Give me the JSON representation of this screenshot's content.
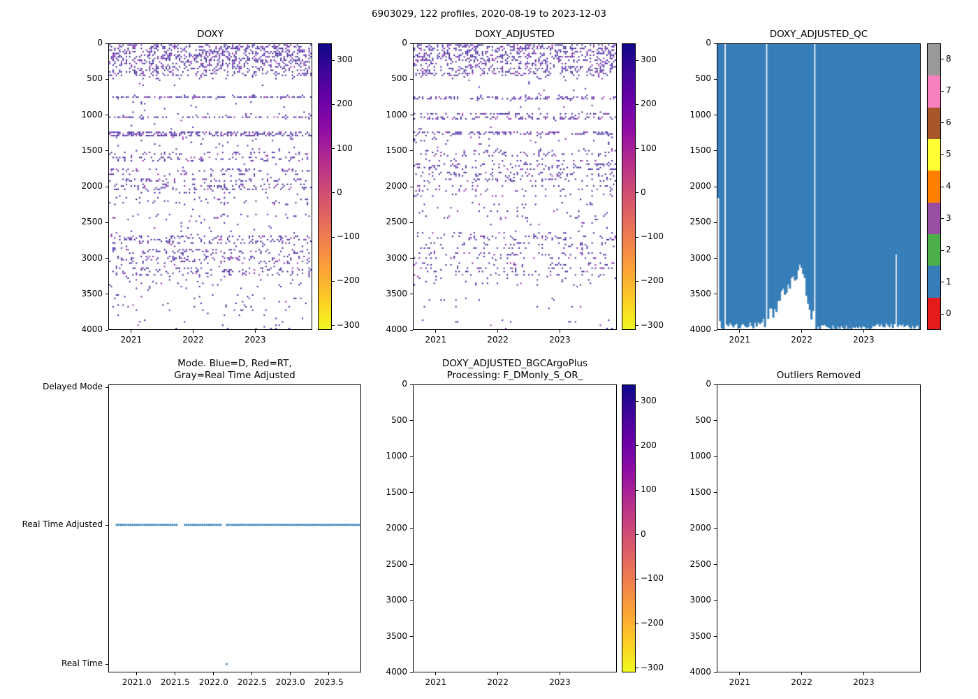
{
  "figure": {
    "title": "6903029, 122 profiles, 2020-08-19 to 2023-12-03"
  },
  "chart_data": [
    {
      "id": "doxy",
      "type": "scatter",
      "title": "DOXY",
      "x_range": [
        2020.63,
        2023.92
      ],
      "y_range": [
        0,
        4000
      ],
      "y_inverted": true,
      "n_profiles": 122,
      "seed": 7,
      "xticks": {
        "values": [
          2021,
          2022,
          2023
        ],
        "labels": [
          "2021",
          "2022",
          "2023"
        ]
      },
      "yticks": {
        "values": [
          0,
          500,
          1000,
          1500,
          2000,
          2500,
          3000,
          3500,
          4000
        ],
        "labels": [
          "0",
          "500",
          "1000",
          "1500",
          "2000",
          "2500",
          "3000",
          "3500",
          "4000"
        ]
      },
      "point_colors": [
        "#2c0894",
        "#1b048b",
        "#2c0894",
        "#43039e",
        "#2c0894",
        "#1b048b",
        "#8a0ba4"
      ],
      "depth_bands": [
        [
          0,
          190,
          0.4
        ],
        [
          190,
          440,
          0.3
        ],
        [
          440,
          480,
          0.06
        ],
        [
          480,
          690,
          0.008
        ],
        [
          690,
          775,
          0.32,
          "rows"
        ],
        [
          775,
          960,
          0.008
        ],
        [
          960,
          1050,
          0.28,
          "rows"
        ],
        [
          1050,
          1210,
          0.008
        ],
        [
          1210,
          1300,
          0.3,
          "rows"
        ],
        [
          1300,
          1480,
          0.03
        ],
        [
          1480,
          2070,
          0.12,
          "rows"
        ],
        [
          2070,
          2430,
          0.045,
          "rows"
        ],
        [
          2430,
          2620,
          0.018
        ],
        [
          2620,
          3230,
          0.11,
          "rows"
        ],
        [
          3230,
          3620,
          0.028,
          "rows"
        ],
        [
          3620,
          4000,
          0.022,
          "rows"
        ]
      ],
      "colorbar": {
        "cmap": "plasma_r",
        "vmin": -310,
        "vmax": 338,
        "ticks": {
          "values": [
            300,
            200,
            100,
            0,
            -100,
            -200,
            -300
          ],
          "labels": [
            "300",
            "200",
            "100",
            "0",
            "−100",
            "−200",
            "−300"
          ]
        },
        "stops": [
          "#0d0887",
          "#41049d",
          "#6a00a8",
          "#8f0da4",
          "#b12a90",
          "#cc4778",
          "#e16462",
          "#f2844b",
          "#fca636",
          "#fcce25",
          "#f0f921"
        ]
      }
    },
    {
      "id": "doxy-adjusted",
      "type": "scatter",
      "title": "DOXY_ADJUSTED",
      "x_range": [
        2020.63,
        2023.92
      ],
      "y_range": [
        0,
        4000
      ],
      "y_inverted": true,
      "n_profiles": 122,
      "seed": 13,
      "density_scale": 0.85,
      "xticks": {
        "values": [
          2021,
          2022,
          2023
        ],
        "labels": [
          "2021",
          "2022",
          "2023"
        ]
      },
      "yticks": {
        "values": [
          0,
          500,
          1000,
          1500,
          2000,
          2500,
          3000,
          3500,
          4000
        ],
        "labels": [
          "0",
          "500",
          "1000",
          "1500",
          "2000",
          "2500",
          "3000",
          "3500",
          "4000"
        ]
      },
      "point_colors": [
        "#2c0894",
        "#1b048b",
        "#2c0894",
        "#43039e",
        "#2c0894",
        "#1b048b",
        "#8a0ba4"
      ],
      "depth_bands": [
        [
          0,
          190,
          0.4
        ],
        [
          190,
          440,
          0.3
        ],
        [
          440,
          480,
          0.06
        ],
        [
          480,
          690,
          0.008
        ],
        [
          690,
          775,
          0.32,
          "rows"
        ],
        [
          775,
          960,
          0.008
        ],
        [
          960,
          1050,
          0.28,
          "rows"
        ],
        [
          1050,
          1210,
          0.008
        ],
        [
          1210,
          1300,
          0.3,
          "rows"
        ],
        [
          1300,
          1480,
          0.03
        ],
        [
          1480,
          2070,
          0.12,
          "rows"
        ],
        [
          2070,
          2430,
          0.045,
          "rows"
        ],
        [
          2430,
          2620,
          0.018
        ],
        [
          2620,
          3230,
          0.11,
          "rows"
        ],
        [
          3230,
          3620,
          0.028,
          "rows"
        ],
        [
          3620,
          4000,
          0.022,
          "rows"
        ]
      ],
      "colorbar": {
        "cmap": "plasma_r",
        "vmin": -310,
        "vmax": 338,
        "ticks": {
          "values": [
            300,
            200,
            100,
            0,
            -100,
            -200,
            -300
          ],
          "labels": [
            "300",
            "200",
            "100",
            "0",
            "−100",
            "−200",
            "−300"
          ]
        },
        "stops": [
          "#0d0887",
          "#41049d",
          "#6a00a8",
          "#8f0da4",
          "#b12a90",
          "#cc4778",
          "#e16462",
          "#f2844b",
          "#fca636",
          "#fcce25",
          "#f0f921"
        ]
      }
    },
    {
      "id": "doxy-adjusted-qc",
      "type": "qc-bars",
      "title": "DOXY_ADJUSTED_QC",
      "x_range": [
        2020.63,
        2023.92
      ],
      "y_range": [
        0,
        4000
      ],
      "y_inverted": true,
      "n_profiles": 122,
      "seed": 42,
      "dominant_qc_flag": 1,
      "fill_color": "#377eb8",
      "xticks": {
        "values": [
          2021,
          2022,
          2023
        ],
        "labels": [
          "2021",
          "2022",
          "2023"
        ]
      },
      "yticks": {
        "values": [
          0,
          500,
          1000,
          1500,
          2000,
          2500,
          3000,
          3500,
          4000
        ],
        "labels": [
          "0",
          "500",
          "1000",
          "1500",
          "2000",
          "2500",
          "3000",
          "3500",
          "4000"
        ]
      },
      "gap_times": [
        2020.76,
        2021.43,
        2022.21
      ],
      "max_depth_envelope": [
        [
          2020.63,
          2150
        ],
        [
          2020.654,
          2150
        ],
        [
          2020.665,
          3880
        ],
        [
          2020.72,
          4000
        ],
        [
          2020.85,
          3930
        ],
        [
          2021.0,
          3960
        ],
        [
          2021.35,
          3950
        ],
        [
          2021.5,
          3800
        ],
        [
          2021.65,
          3600
        ],
        [
          2021.8,
          3400
        ],
        [
          2021.95,
          3150
        ],
        [
          2022.0,
          3200
        ],
        [
          2022.1,
          3600
        ],
        [
          2022.2,
          3900
        ],
        [
          2022.25,
          3970
        ],
        [
          2022.6,
          3980
        ],
        [
          2023.0,
          3975
        ],
        [
          2023.3,
          3945
        ],
        [
          2023.6,
          3955
        ],
        [
          2023.92,
          3975
        ]
      ],
      "jitter": [
        [
          2020.63,
          2021.35,
          100
        ],
        [
          2021.35,
          2022.25,
          240
        ],
        [
          2022.25,
          2023.92,
          70
        ]
      ],
      "special_profiles": [
        [
          2023.52,
          2950
        ]
      ],
      "colorbar": {
        "type": "discrete",
        "ticks": {
          "values": [
            0,
            1,
            2,
            3,
            4,
            5,
            6,
            7,
            8
          ],
          "labels": [
            "0",
            "1",
            "2",
            "3",
            "4",
            "5",
            "6",
            "7",
            "8"
          ]
        },
        "colors_bottom_to_top": [
          "#e41a1c",
          "#377eb8",
          "#4daf4a",
          "#984ea3",
          "#ff7f00",
          "#ffff33",
          "#a65628",
          "#f781bf",
          "#999999"
        ]
      }
    },
    {
      "id": "mode",
      "type": "categorical-scatter",
      "title_lines": [
        "Mode. Blue=D, Red=RT,",
        "Gray=Real Time Adjusted"
      ],
      "x_range": [
        2020.63,
        2023.92
      ],
      "n_profiles": 122,
      "categories": [
        "Delayed Mode",
        "Real Time Adjusted",
        "Real Time"
      ],
      "xticks": {
        "values": [
          2021.0,
          2021.5,
          2022.0,
          2022.5,
          2023.0,
          2023.5
        ],
        "labels": [
          "2021.0",
          "2021.5",
          "2022.0",
          "2022.5",
          "2023.0",
          "2023.5"
        ]
      },
      "line": {
        "category": "Real Time Adjusted",
        "color": "#1f77b4",
        "start": 2020.73,
        "end": 2023.9,
        "gaps": [
          [
            2021.52,
            2021.6
          ],
          [
            2022.1,
            2022.17
          ]
        ]
      },
      "points": [
        {
          "x": 2022.17,
          "category": "Real Time",
          "color": "#1f77b4"
        }
      ]
    },
    {
      "id": "bgc-processing",
      "type": "scatter",
      "empty": true,
      "title_lines": [
        "DOXY_ADJUSTED_BGCArgoPlus",
        "Processing: F_DMonly_S_OR_"
      ],
      "x_range": [
        2020.63,
        2023.92
      ],
      "y_range": [
        0,
        4000
      ],
      "y_inverted": true,
      "xticks": {
        "values": [
          2021,
          2022,
          2023
        ],
        "labels": [
          "2021",
          "2022",
          "2023"
        ]
      },
      "yticks": {
        "values": [
          0,
          500,
          1000,
          1500,
          2000,
          2500,
          3000,
          3500,
          4000
        ],
        "labels": [
          "0",
          "500",
          "1000",
          "1500",
          "2000",
          "2500",
          "3000",
          "3500",
          "4000"
        ]
      },
      "colorbar": {
        "cmap": "plasma_r",
        "vmin": -310,
        "vmax": 338,
        "ticks": {
          "values": [
            300,
            200,
            100,
            0,
            -100,
            -200,
            -300
          ],
          "labels": [
            "300",
            "200",
            "100",
            "0",
            "−100",
            "−200",
            "−300"
          ]
        },
        "stops": [
          "#0d0887",
          "#41049d",
          "#6a00a8",
          "#8f0da4",
          "#b12a90",
          "#cc4778",
          "#e16462",
          "#f2844b",
          "#fca636",
          "#fcce25",
          "#f0f921"
        ]
      }
    },
    {
      "id": "outliers-removed",
      "type": "scatter",
      "empty": true,
      "title": "Outliers Removed",
      "x_range": [
        2020.63,
        2023.92
      ],
      "y_range": [
        0,
        4000
      ],
      "y_inverted": true,
      "xticks": {
        "values": [
          2021,
          2022,
          2023
        ],
        "labels": [
          "2021",
          "2022",
          "2023"
        ]
      },
      "yticks": {
        "values": [
          0,
          500,
          1000,
          1500,
          2000,
          2500,
          3000,
          3500,
          4000
        ],
        "labels": [
          "0",
          "500",
          "1000",
          "1500",
          "2000",
          "2500",
          "3000",
          "3500",
          "4000"
        ]
      }
    }
  ]
}
